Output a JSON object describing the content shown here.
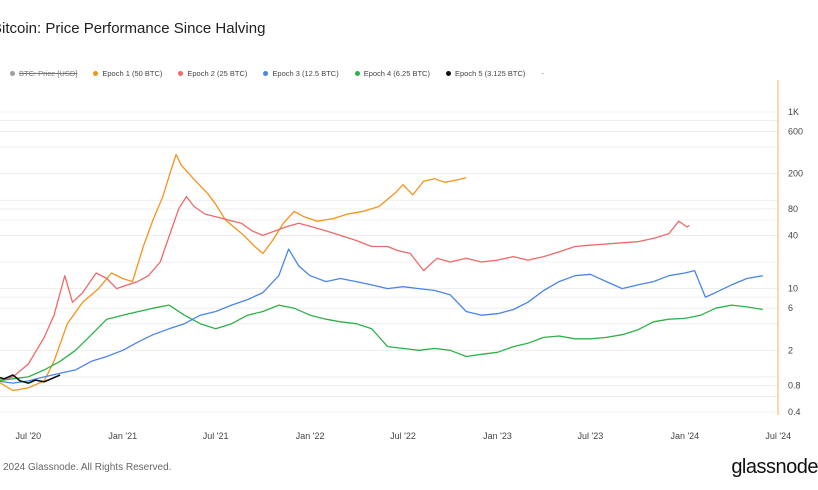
{
  "page": {
    "title": "Bitcoin: Price Performance Since Halving",
    "copyright": "2024 Glassnode. All Rights Reserved.",
    "logo": "glassnode"
  },
  "legend": {
    "items": [
      {
        "label": "BTC: Price [USD]",
        "color": "#9e9e9e",
        "disabled": true
      },
      {
        "label": "Epoch 1 (50 BTC)",
        "color": "#f7931a",
        "disabled": false
      },
      {
        "label": "Epoch 2 (25 BTC)",
        "color": "#f0696a",
        "disabled": false
      },
      {
        "label": "Epoch 3 (12.5 BTC)",
        "color": "#4a86e8",
        "disabled": false
      },
      {
        "label": "Epoch 4 (6.25 BTC)",
        "color": "#2eb14a",
        "disabled": false
      },
      {
        "label": "Epoch 5 (3.125 BTC)",
        "color": "#111111",
        "disabled": false
      }
    ],
    "more": "-"
  },
  "chart_data": {
    "type": "line",
    "title": "Bitcoin: Price Performance Since Halving",
    "y_scale": "log",
    "ylim": [
      0.4,
      1000
    ],
    "y_ticks": [
      {
        "value": 0.4,
        "label": "0.4"
      },
      {
        "value": 0.8,
        "label": "0.8"
      },
      {
        "value": 2,
        "label": "2"
      },
      {
        "value": 6,
        "label": "6"
      },
      {
        "value": 10,
        "label": "10"
      },
      {
        "value": 40,
        "label": "40"
      },
      {
        "value": 80,
        "label": "80"
      },
      {
        "value": 200,
        "label": "200"
      },
      {
        "value": 600,
        "label": "600"
      },
      {
        "value": 1000,
        "label": "1K"
      }
    ],
    "xlim": [
      "2020-05-01",
      "2024-07-20"
    ],
    "x_ticks": [
      {
        "date": "2020-07-01",
        "label": "Jul '20"
      },
      {
        "date": "2021-01-01",
        "label": "Jan '21"
      },
      {
        "date": "2021-07-01",
        "label": "Jul '21"
      },
      {
        "date": "2022-01-01",
        "label": "Jan '22"
      },
      {
        "date": "2022-07-01",
        "label": "Jul '22"
      },
      {
        "date": "2023-01-01",
        "label": "Jan '23"
      },
      {
        "date": "2023-07-01",
        "label": "Jul '23"
      },
      {
        "date": "2024-01-01",
        "label": "Jan '24"
      },
      {
        "date": "2024-07-01",
        "label": "Jul '24"
      }
    ],
    "grid": true,
    "legend_position": "top",
    "series": [
      {
        "name": "Epoch 1 (50 BTC)",
        "color": "#f7931a",
        "points": [
          [
            "2020-05-01",
            0.9
          ],
          [
            "2020-06-01",
            0.7
          ],
          [
            "2020-07-01",
            0.75
          ],
          [
            "2020-08-01",
            0.9
          ],
          [
            "2020-08-20",
            1.5
          ],
          [
            "2020-09-15",
            4
          ],
          [
            "2020-10-15",
            7
          ],
          [
            "2020-11-15",
            10
          ],
          [
            "2020-12-10",
            15
          ],
          [
            "2021-01-01",
            13
          ],
          [
            "2021-01-20",
            12
          ],
          [
            "2021-02-10",
            30
          ],
          [
            "2021-03-01",
            60
          ],
          [
            "2021-03-20",
            110
          ],
          [
            "2021-04-05",
            220
          ],
          [
            "2021-04-15",
            330
          ],
          [
            "2021-04-25",
            250
          ],
          [
            "2021-05-10",
            200
          ],
          [
            "2021-05-25",
            160
          ],
          [
            "2021-06-15",
            120
          ],
          [
            "2021-07-01",
            90
          ],
          [
            "2021-07-20",
            60
          ],
          [
            "2021-08-05",
            50
          ],
          [
            "2021-08-25",
            40
          ],
          [
            "2021-09-15",
            30
          ],
          [
            "2021-10-01",
            25
          ],
          [
            "2021-10-20",
            35
          ],
          [
            "2021-11-10",
            55
          ],
          [
            "2021-12-01",
            75
          ],
          [
            "2021-12-20",
            65
          ],
          [
            "2022-01-15",
            58
          ],
          [
            "2022-02-15",
            62
          ],
          [
            "2022-03-15",
            70
          ],
          [
            "2022-04-15",
            75
          ],
          [
            "2022-05-15",
            85
          ],
          [
            "2022-06-15",
            120
          ],
          [
            "2022-07-01",
            150
          ],
          [
            "2022-07-20",
            115
          ],
          [
            "2022-08-10",
            165
          ],
          [
            "2022-09-01",
            175
          ],
          [
            "2022-09-20",
            160
          ],
          [
            "2022-10-15",
            170
          ],
          [
            "2022-11-01",
            180
          ]
        ]
      },
      {
        "name": "Epoch 2 (25 BTC)",
        "color": "#f0696a",
        "points": [
          [
            "2020-05-01",
            0.9
          ],
          [
            "2020-06-01",
            1.0
          ],
          [
            "2020-07-01",
            1.4
          ],
          [
            "2020-08-01",
            2.8
          ],
          [
            "2020-08-20",
            5
          ],
          [
            "2020-09-10",
            14
          ],
          [
            "2020-09-25",
            7
          ],
          [
            "2020-10-15",
            9
          ],
          [
            "2020-11-10",
            15
          ],
          [
            "2020-12-01",
            13
          ],
          [
            "2020-12-20",
            10
          ],
          [
            "2021-01-10",
            11
          ],
          [
            "2021-01-30",
            12
          ],
          [
            "2021-02-20",
            14
          ],
          [
            "2021-03-15",
            20
          ],
          [
            "2021-04-05",
            45
          ],
          [
            "2021-04-20",
            80
          ],
          [
            "2021-05-05",
            110
          ],
          [
            "2021-05-20",
            85
          ],
          [
            "2021-06-10",
            70
          ],
          [
            "2021-07-01",
            65
          ],
          [
            "2021-07-25",
            60
          ],
          [
            "2021-08-20",
            55
          ],
          [
            "2021-09-10",
            45
          ],
          [
            "2021-10-01",
            40
          ],
          [
            "2021-10-25",
            45
          ],
          [
            "2021-11-15",
            50
          ],
          [
            "2021-12-10",
            55
          ],
          [
            "2022-01-05",
            50
          ],
          [
            "2022-02-01",
            45
          ],
          [
            "2022-03-01",
            40
          ],
          [
            "2022-04-01",
            35
          ],
          [
            "2022-05-01",
            30
          ],
          [
            "2022-06-01",
            30
          ],
          [
            "2022-06-20",
            27
          ],
          [
            "2022-07-15",
            25
          ],
          [
            "2022-08-10",
            16
          ],
          [
            "2022-09-05",
            22
          ],
          [
            "2022-10-01",
            20
          ],
          [
            "2022-11-01",
            22
          ],
          [
            "2022-12-01",
            20
          ],
          [
            "2023-01-01",
            21
          ],
          [
            "2023-02-01",
            23
          ],
          [
            "2023-03-01",
            21
          ],
          [
            "2023-04-01",
            23
          ],
          [
            "2023-05-01",
            26
          ],
          [
            "2023-06-01",
            30
          ],
          [
            "2023-07-01",
            31
          ],
          [
            "2023-08-01",
            32
          ],
          [
            "2023-09-01",
            33
          ],
          [
            "2023-10-01",
            34
          ],
          [
            "2023-11-01",
            37
          ],
          [
            "2023-12-01",
            42
          ],
          [
            "2023-12-20",
            58
          ],
          [
            "2024-01-05",
            50
          ],
          [
            "2024-01-10",
            52
          ]
        ]
      },
      {
        "name": "Epoch 3 (12.5 BTC)",
        "color": "#4a86e8",
        "points": [
          [
            "2020-05-01",
            0.9
          ],
          [
            "2020-06-01",
            0.85
          ],
          [
            "2020-07-01",
            0.9
          ],
          [
            "2020-08-01",
            1.0
          ],
          [
            "2020-09-01",
            1.1
          ],
          [
            "2020-10-01",
            1.2
          ],
          [
            "2020-11-01",
            1.5
          ],
          [
            "2020-12-01",
            1.7
          ],
          [
            "2021-01-01",
            2.0
          ],
          [
            "2021-02-01",
            2.5
          ],
          [
            "2021-03-01",
            3.0
          ],
          [
            "2021-04-01",
            3.5
          ],
          [
            "2021-05-01",
            4.0
          ],
          [
            "2021-06-01",
            5.0
          ],
          [
            "2021-07-01",
            5.5
          ],
          [
            "2021-08-01",
            6.5
          ],
          [
            "2021-09-01",
            7.5
          ],
          [
            "2021-10-01",
            9.0
          ],
          [
            "2021-11-01",
            14
          ],
          [
            "2021-11-20",
            28
          ],
          [
            "2021-12-10",
            18
          ],
          [
            "2022-01-01",
            14
          ],
          [
            "2022-02-01",
            12
          ],
          [
            "2022-03-01",
            13
          ],
          [
            "2022-04-01",
            12
          ],
          [
            "2022-05-01",
            11
          ],
          [
            "2022-06-01",
            10
          ],
          [
            "2022-07-01",
            10.5
          ],
          [
            "2022-08-01",
            10
          ],
          [
            "2022-09-01",
            9.5
          ],
          [
            "2022-10-01",
            8.5
          ],
          [
            "2022-11-01",
            5.5
          ],
          [
            "2022-12-01",
            5.0
          ],
          [
            "2023-01-01",
            5.2
          ],
          [
            "2023-02-01",
            5.8
          ],
          [
            "2023-03-01",
            7.0
          ],
          [
            "2023-04-01",
            9.5
          ],
          [
            "2023-05-01",
            12
          ],
          [
            "2023-06-01",
            14
          ],
          [
            "2023-07-01",
            14.5
          ],
          [
            "2023-08-01",
            12
          ],
          [
            "2023-09-01",
            10
          ],
          [
            "2023-10-01",
            11
          ],
          [
            "2023-11-01",
            12
          ],
          [
            "2023-12-01",
            14
          ],
          [
            "2024-01-01",
            15
          ],
          [
            "2024-01-20",
            16
          ],
          [
            "2024-02-10",
            8
          ],
          [
            "2024-03-01",
            9
          ],
          [
            "2024-04-01",
            11
          ],
          [
            "2024-05-01",
            13
          ],
          [
            "2024-06-01",
            14
          ]
        ]
      },
      {
        "name": "Epoch 4 (6.25 BTC)",
        "color": "#2eb14a",
        "points": [
          [
            "2020-05-01",
            0.9
          ],
          [
            "2020-06-01",
            0.95
          ],
          [
            "2020-07-01",
            1.0
          ],
          [
            "2020-08-01",
            1.2
          ],
          [
            "2020-09-01",
            1.5
          ],
          [
            "2020-10-01",
            2.0
          ],
          [
            "2020-11-01",
            3.0
          ],
          [
            "2020-12-01",
            4.5
          ],
          [
            "2021-01-01",
            5.0
          ],
          [
            "2021-02-01",
            5.5
          ],
          [
            "2021-03-01",
            6.0
          ],
          [
            "2021-04-01",
            6.5
          ],
          [
            "2021-05-01",
            5.0
          ],
          [
            "2021-06-01",
            4.0
          ],
          [
            "2021-07-01",
            3.5
          ],
          [
            "2021-08-01",
            4.0
          ],
          [
            "2021-09-01",
            5.0
          ],
          [
            "2021-10-01",
            5.5
          ],
          [
            "2021-11-01",
            6.5
          ],
          [
            "2021-12-01",
            6.0
          ],
          [
            "2022-01-01",
            5.0
          ],
          [
            "2022-02-01",
            4.5
          ],
          [
            "2022-03-01",
            4.2
          ],
          [
            "2022-04-01",
            4.0
          ],
          [
            "2022-05-01",
            3.5
          ],
          [
            "2022-06-01",
            2.2
          ],
          [
            "2022-07-01",
            2.1
          ],
          [
            "2022-08-01",
            2.0
          ],
          [
            "2022-09-01",
            2.1
          ],
          [
            "2022-10-01",
            2.0
          ],
          [
            "2022-11-01",
            1.7
          ],
          [
            "2022-12-01",
            1.8
          ],
          [
            "2023-01-01",
            1.9
          ],
          [
            "2023-02-01",
            2.2
          ],
          [
            "2023-03-01",
            2.4
          ],
          [
            "2023-04-01",
            2.8
          ],
          [
            "2023-05-01",
            2.9
          ],
          [
            "2023-06-01",
            2.7
          ],
          [
            "2023-07-01",
            2.7
          ],
          [
            "2023-08-01",
            2.8
          ],
          [
            "2023-09-01",
            3.0
          ],
          [
            "2023-10-01",
            3.4
          ],
          [
            "2023-11-01",
            4.2
          ],
          [
            "2023-12-01",
            4.5
          ],
          [
            "2024-01-01",
            4.6
          ],
          [
            "2024-02-01",
            5.0
          ],
          [
            "2024-03-01",
            6.0
          ],
          [
            "2024-04-01",
            6.5
          ],
          [
            "2024-05-01",
            6.2
          ],
          [
            "2024-06-01",
            5.8
          ]
        ]
      },
      {
        "name": "Epoch 5 (3.125 BTC)",
        "color": "#111111",
        "points": [
          [
            "2020-05-01",
            1.0
          ],
          [
            "2020-05-15",
            0.95
          ],
          [
            "2020-06-01",
            1.05
          ],
          [
            "2020-06-15",
            0.9
          ],
          [
            "2020-07-01",
            0.85
          ],
          [
            "2020-07-15",
            0.92
          ],
          [
            "2020-08-01",
            0.88
          ],
          [
            "2020-08-15",
            0.95
          ],
          [
            "2020-09-01",
            1.05
          ]
        ]
      }
    ]
  }
}
